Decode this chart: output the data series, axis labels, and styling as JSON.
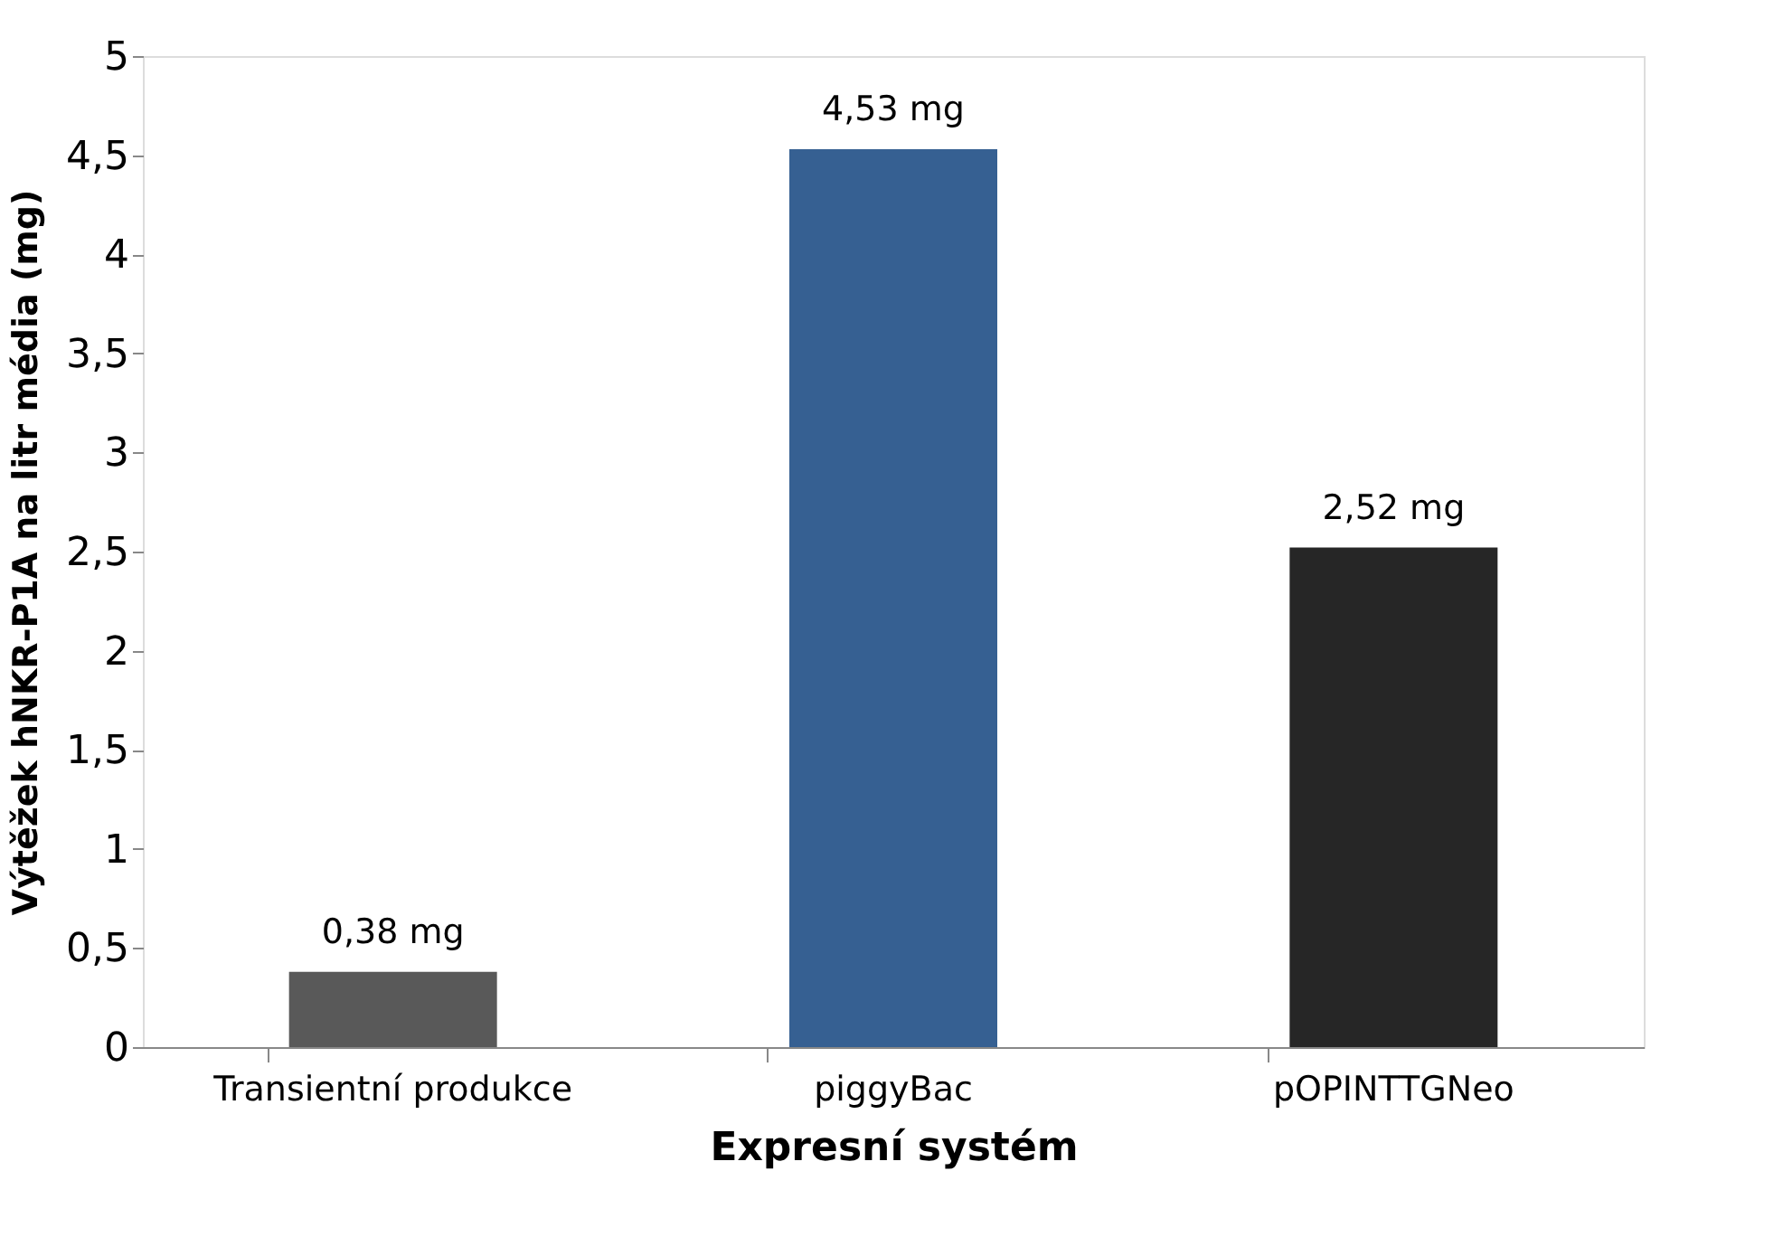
{
  "chart_data": {
    "type": "bar",
    "xlabel": "Expresní systém",
    "ylabel": "Výtěžek hNKR-P1A na litr média (mg)",
    "categories": [
      "Transientní produkce",
      "piggyBac",
      "pOPINTTGNeo"
    ],
    "values": [
      0.38,
      4.53,
      2.52
    ],
    "colors": [
      "#595959",
      "#366092",
      "#262626"
    ],
    "value_labels": [
      "0,38 mg",
      "4,53 mg",
      "2,52 mg"
    ],
    "ylim": [
      0,
      5
    ],
    "yticks": [
      0,
      {
        "value": 0.5,
        "label": "0,5"
      },
      1,
      {
        "value": 1.5,
        "label": "1,5"
      },
      2,
      {
        "value": 2.5,
        "label": "2,5"
      },
      3,
      {
        "value": 3.5,
        "label": "3,5"
      },
      4,
      {
        "value": 4.5,
        "label": "4,5"
      },
      5
    ],
    "grid": false,
    "legend": false
  }
}
